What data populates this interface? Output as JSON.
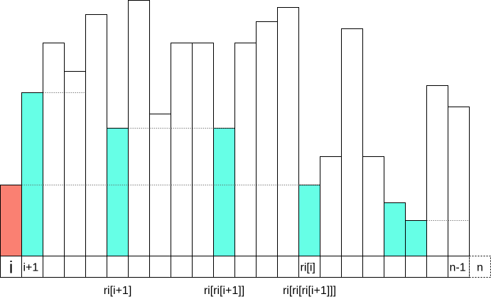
{
  "diagram": {
    "colors": {
      "bar_default": "#ffffff",
      "bar_start": "#fa8072",
      "bar_highlight": "#66ffe6",
      "stroke": "#000000",
      "guide": "#555555"
    },
    "bars": [
      {
        "value": 100,
        "role": "start"
      },
      {
        "value": 230,
        "role": "highlight"
      },
      {
        "value": 300,
        "role": "default"
      },
      {
        "value": 260,
        "role": "default"
      },
      {
        "value": 340,
        "role": "default"
      },
      {
        "value": 180,
        "role": "highlight"
      },
      {
        "value": 360,
        "role": "default"
      },
      {
        "value": 200,
        "role": "default"
      },
      {
        "value": 300,
        "role": "default"
      },
      {
        "value": 300,
        "role": "default"
      },
      {
        "value": 180,
        "role": "highlight"
      },
      {
        "value": 300,
        "role": "default"
      },
      {
        "value": 330,
        "role": "default"
      },
      {
        "value": 350,
        "role": "default"
      },
      {
        "value": 100,
        "role": "highlight"
      },
      {
        "value": 140,
        "role": "default"
      },
      {
        "value": 320,
        "role": "default"
      },
      {
        "value": 140,
        "role": "default"
      },
      {
        "value": 75,
        "role": "highlight"
      },
      {
        "value": 50,
        "role": "highlight"
      },
      {
        "value": 240,
        "role": "default"
      },
      {
        "value": 210,
        "role": "default"
      }
    ],
    "guides": [
      {
        "from_bar": 1,
        "to_bar": 3
      },
      {
        "from_bar": 5,
        "to_bar": 10
      },
      {
        "from_bar": 0,
        "to_bar": 14
      },
      {
        "from_bar": 19,
        "to_bar": 21
      }
    ],
    "cell_labels": [
      {
        "index": 0,
        "text": "i",
        "large": true
      },
      {
        "index": 1,
        "text": "i+1",
        "large": false
      },
      {
        "index": 14,
        "text": "ri[i]",
        "large": false
      },
      {
        "index": 21,
        "text": "n-1",
        "large": false
      }
    ],
    "extra_cell": {
      "text": "n"
    },
    "below_labels": [
      {
        "index": 5,
        "text": "ri[i+1]"
      },
      {
        "index": 10,
        "text": "ri[ri[i+1]]"
      },
      {
        "index": 14,
        "text": "ri[ri[ri[i+1]]]"
      }
    ]
  }
}
